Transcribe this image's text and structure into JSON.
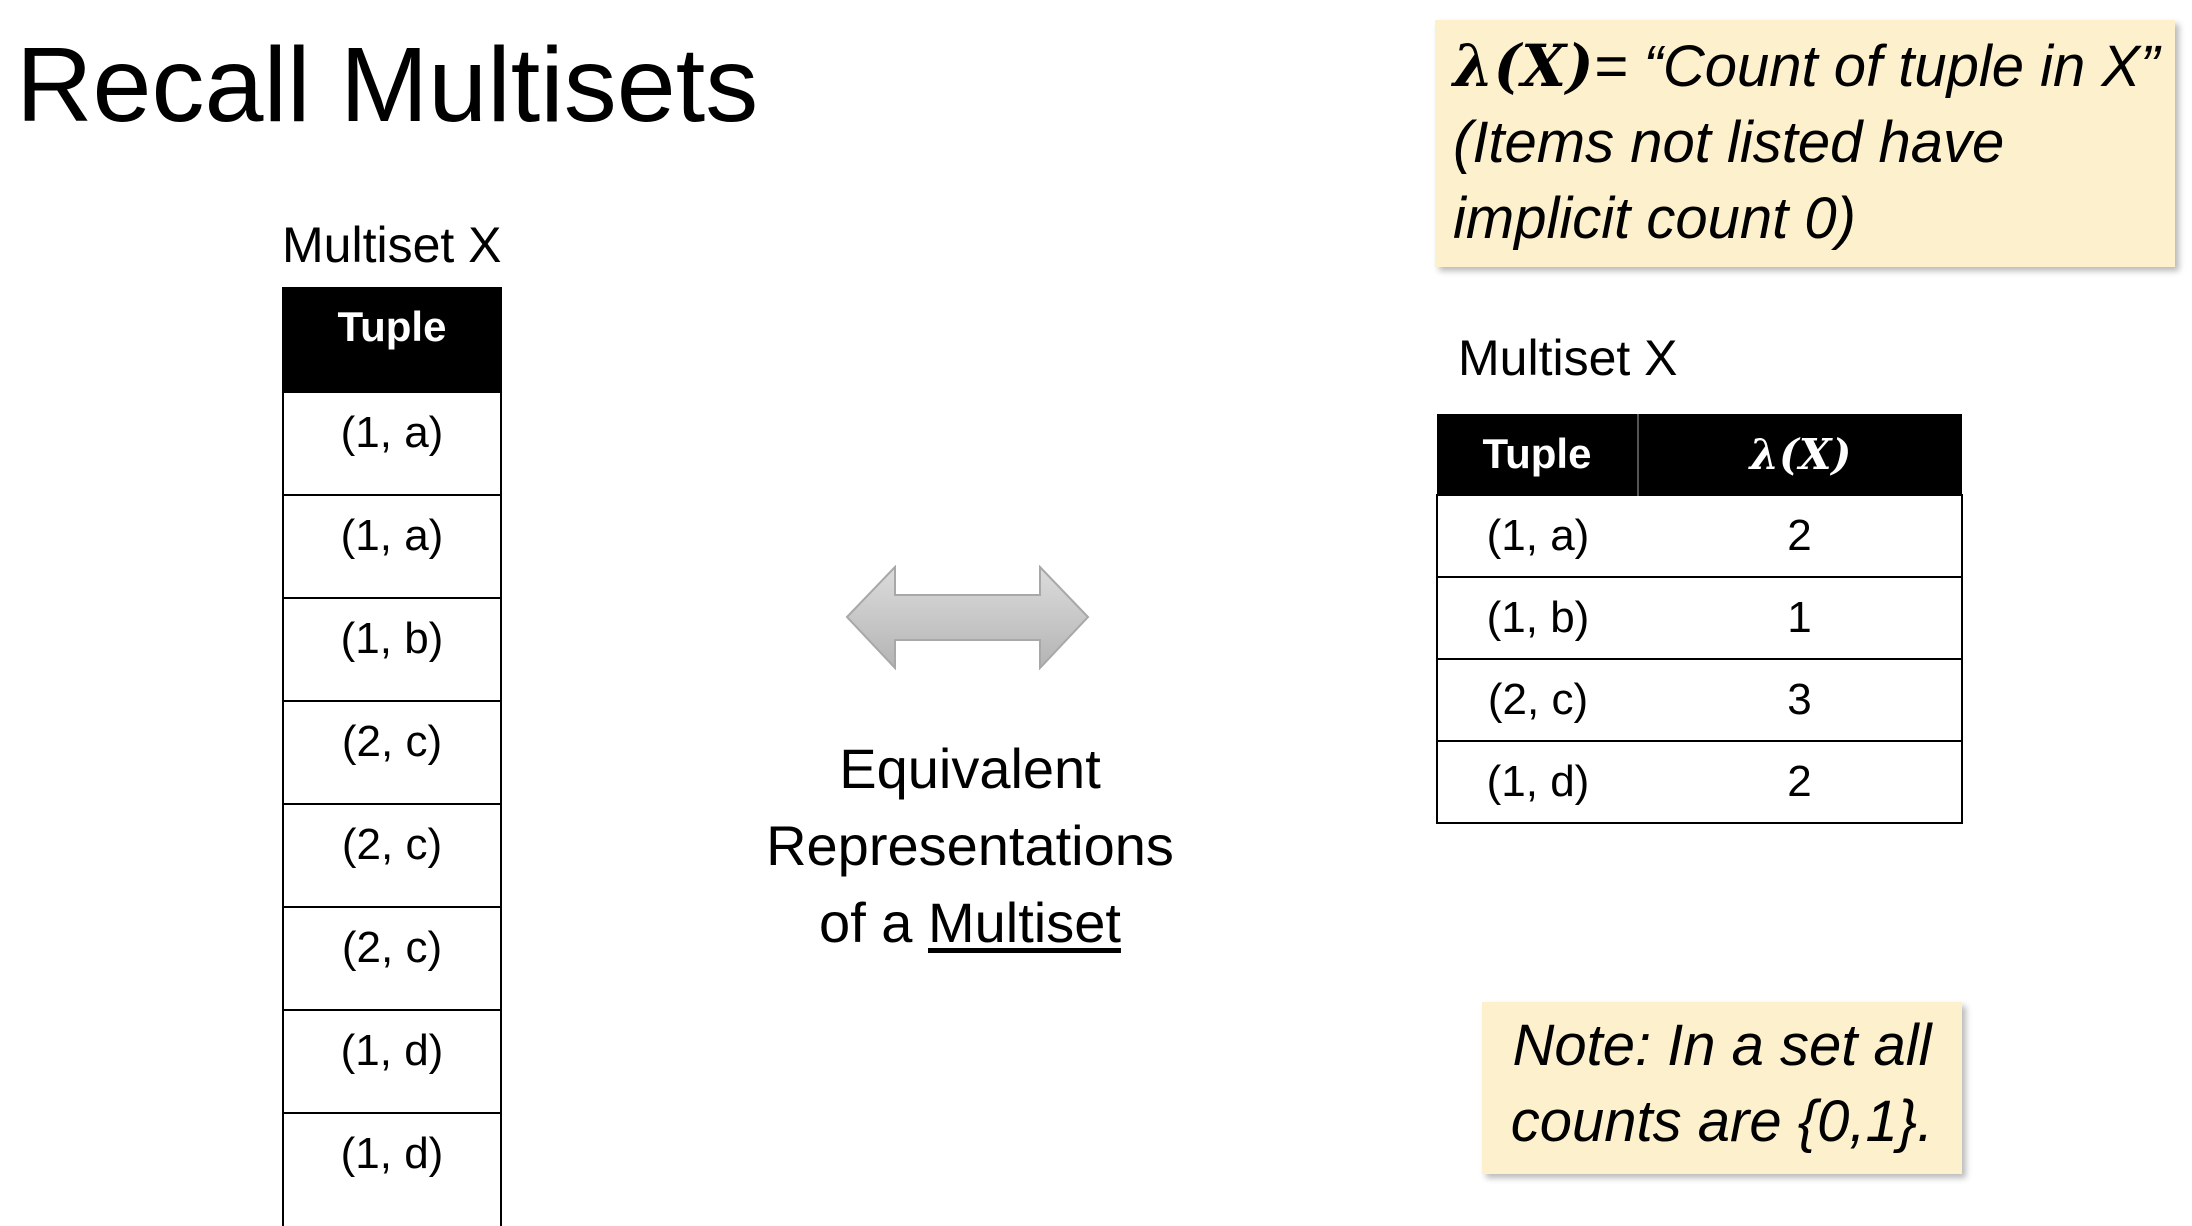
{
  "title": "Recall Multisets",
  "left_table": {
    "caption": "Multiset X",
    "header": "Tuple",
    "rows": [
      "(1, a)",
      "(1, a)",
      "(1, b)",
      "(2, c)",
      "(2, c)",
      "(2, c)",
      "(1, d)",
      "(1, d)"
    ]
  },
  "center": {
    "line1": "Equivalent",
    "line2": "Representations",
    "line3_prefix": "of a ",
    "line3_underlined": "Multiset"
  },
  "definition_note": {
    "symbol": "λ(X)",
    "line1_rest": "= “Count of tuple in X”",
    "line2": "(Items not listed have",
    "line3": "implicit count 0)"
  },
  "right_table": {
    "caption": "Multiset X",
    "headers": [
      "Tuple",
      "λ(X)"
    ],
    "rows": [
      {
        "tuple": "(1, a)",
        "count": "2"
      },
      {
        "tuple": "(1, b)",
        "count": "1"
      },
      {
        "tuple": "(2, c)",
        "count": "3"
      },
      {
        "tuple": "(1, d)",
        "count": "2"
      }
    ]
  },
  "set_note": {
    "line1": "Note: In a set all",
    "line2": "counts are {0,1}."
  },
  "colors": {
    "note_background": "#fdf0cc",
    "header_background": "#000000",
    "arrow_fill": "#c8c8c8"
  },
  "icons": {
    "arrow": "double-arrow-icon"
  }
}
